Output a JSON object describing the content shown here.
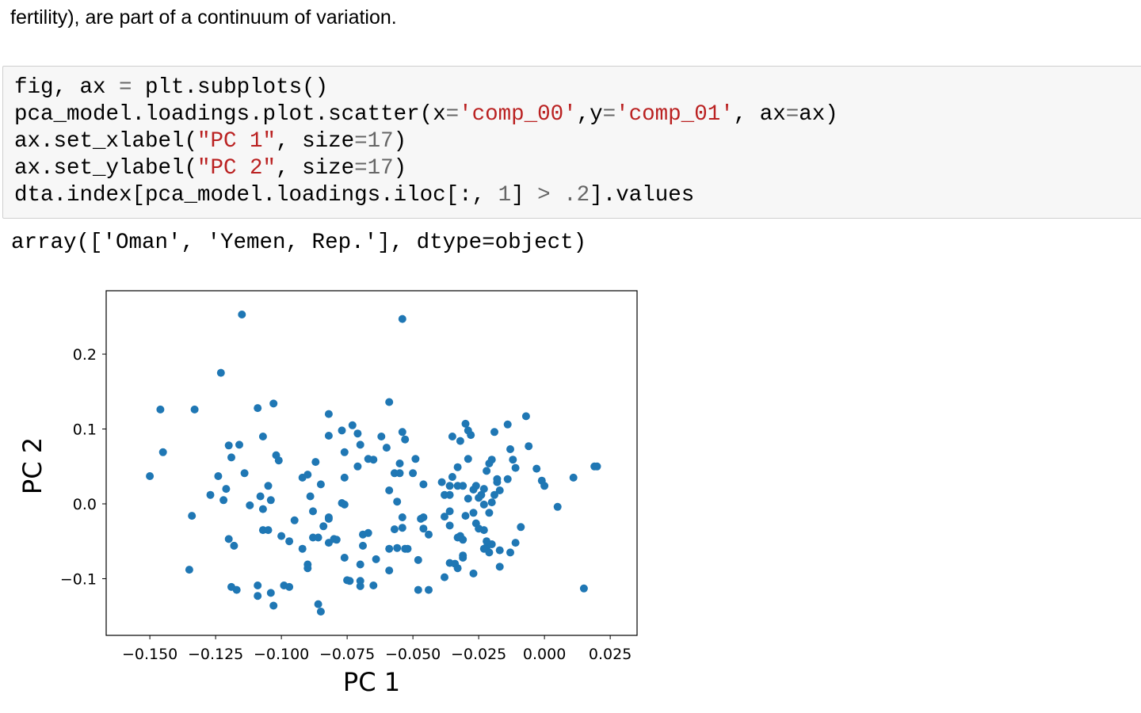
{
  "paragraph": "fertility), are part of a continuum of variation.",
  "code_cell": {
    "lines": [
      [
        {
          "t": "fig, ax ",
          "k": "plain"
        },
        {
          "t": "=",
          "k": "op"
        },
        {
          "t": " plt.subplots()",
          "k": "plain"
        }
      ],
      [
        {
          "t": "pca_model.loadings.plot.scatter(x",
          "k": "plain"
        },
        {
          "t": "=",
          "k": "op"
        },
        {
          "t": "'comp_00'",
          "k": "string"
        },
        {
          "t": ",y",
          "k": "plain"
        },
        {
          "t": "=",
          "k": "op"
        },
        {
          "t": "'comp_01'",
          "k": "string"
        },
        {
          "t": ", ax",
          "k": "plain"
        },
        {
          "t": "=",
          "k": "op"
        },
        {
          "t": "ax)",
          "k": "plain"
        }
      ],
      [
        {
          "t": "ax.set_xlabel(",
          "k": "plain"
        },
        {
          "t": "\"PC 1\"",
          "k": "string"
        },
        {
          "t": ", size",
          "k": "plain"
        },
        {
          "t": "=",
          "k": "op"
        },
        {
          "t": "17",
          "k": "number"
        },
        {
          "t": ")",
          "k": "plain"
        }
      ],
      [
        {
          "t": "ax.set_ylabel(",
          "k": "plain"
        },
        {
          "t": "\"PC 2\"",
          "k": "string"
        },
        {
          "t": ", size",
          "k": "plain"
        },
        {
          "t": "=",
          "k": "op"
        },
        {
          "t": "17",
          "k": "number"
        },
        {
          "t": ")",
          "k": "plain"
        }
      ],
      [
        {
          "t": "dta.index[pca_model.loadings.iloc[:, ",
          "k": "plain"
        },
        {
          "t": "1",
          "k": "number"
        },
        {
          "t": "] ",
          "k": "plain"
        },
        {
          "t": ">",
          "k": "op"
        },
        {
          "t": " ",
          "k": "plain"
        },
        {
          "t": ".2",
          "k": "number"
        },
        {
          "t": "].values",
          "k": "plain"
        }
      ]
    ]
  },
  "output_text": "array(['Oman', 'Yemen, Rep.'], dtype=object)",
  "chart_data": {
    "type": "scatter",
    "xlabel": "PC 1",
    "ylabel": "PC 2",
    "xlim": [
      -0.1666,
      0.0352
    ],
    "ylim": [
      -0.1757,
      0.2847
    ],
    "xticks": [
      -0.15,
      -0.125,
      -0.1,
      -0.075,
      -0.05,
      -0.025,
      0.0,
      0.025
    ],
    "xtick_labels": [
      "−0.150",
      "−0.125",
      "−0.100",
      "−0.075",
      "−0.050",
      "−0.025",
      "0.000",
      "0.025"
    ],
    "yticks": [
      -0.1,
      0.0,
      0.1,
      0.2
    ],
    "ytick_labels": [
      "−0.1",
      "0.0",
      "0.1",
      "0.2"
    ],
    "grid": false,
    "color": "#1f77b4",
    "points": [
      [
        -0.115,
        0.253
      ],
      [
        -0.054,
        0.247
      ],
      [
        -0.123,
        0.175
      ],
      [
        -0.146,
        0.126
      ],
      [
        -0.133,
        0.126
      ],
      [
        -0.109,
        0.128
      ],
      [
        -0.103,
        0.134
      ],
      [
        -0.059,
        0.136
      ],
      [
        -0.082,
        0.12
      ],
      [
        -0.15,
        0.037
      ],
      [
        -0.145,
        0.069
      ],
      [
        -0.12,
        0.078
      ],
      [
        -0.116,
        0.079
      ],
      [
        -0.119,
        0.062
      ],
      [
        -0.107,
        0.09
      ],
      [
        -0.102,
        0.065
      ],
      [
        -0.101,
        0.058
      ],
      [
        -0.114,
        0.041
      ],
      [
        -0.124,
        0.037
      ],
      [
        -0.127,
        0.012
      ],
      [
        -0.121,
        0.02
      ],
      [
        -0.122,
        0.005
      ],
      [
        -0.134,
        -0.016
      ],
      [
        -0.135,
        -0.088
      ],
      [
        -0.12,
        -0.047
      ],
      [
        -0.118,
        -0.056
      ],
      [
        -0.119,
        -0.111
      ],
      [
        -0.117,
        -0.115
      ],
      [
        -0.109,
        -0.109
      ],
      [
        -0.109,
        -0.123
      ],
      [
        -0.104,
        -0.119
      ],
      [
        -0.103,
        -0.136
      ],
      [
        -0.099,
        -0.109
      ],
      [
        -0.097,
        -0.111
      ],
      [
        -0.086,
        -0.134
      ],
      [
        -0.085,
        -0.144
      ],
      [
        -0.112,
        -0.002
      ],
      [
        -0.108,
        0.01
      ],
      [
        -0.107,
        -0.007
      ],
      [
        -0.104,
        0.005
      ],
      [
        -0.105,
        0.024
      ],
      [
        -0.107,
        -0.035
      ],
      [
        -0.105,
        -0.035
      ],
      [
        -0.1,
        -0.043
      ],
      [
        -0.097,
        -0.05
      ],
      [
        -0.095,
        -0.022
      ],
      [
        -0.092,
        -0.06
      ],
      [
        -0.09,
        -0.081
      ],
      [
        -0.09,
        -0.086
      ],
      [
        -0.092,
        0.035
      ],
      [
        -0.09,
        0.039
      ],
      [
        -0.087,
        0.056
      ],
      [
        -0.085,
        0.026
      ],
      [
        -0.089,
        0.01
      ],
      [
        -0.088,
        -0.01
      ],
      [
        -0.088,
        -0.045
      ],
      [
        -0.086,
        -0.045
      ],
      [
        -0.082,
        -0.02
      ],
      [
        -0.082,
        -0.018
      ],
      [
        -0.082,
        -0.052
      ],
      [
        -0.08,
        -0.047
      ],
      [
        -0.084,
        -0.03
      ],
      [
        -0.076,
        0.035
      ],
      [
        -0.076,
        0.069
      ],
      [
        -0.077,
        0.098
      ],
      [
        -0.082,
        0.091
      ],
      [
        -0.073,
        0.105
      ],
      [
        -0.071,
        0.094
      ],
      [
        -0.07,
        0.079
      ],
      [
        -0.067,
        0.06
      ],
      [
        -0.062,
        0.09
      ],
      [
        -0.06,
        0.075
      ],
      [
        -0.065,
        0.059
      ],
      [
        -0.071,
        0.05
      ],
      [
        -0.077,
        0.001
      ],
      [
        -0.076,
        -0.001
      ],
      [
        -0.079,
        -0.048
      ],
      [
        -0.076,
        -0.072
      ],
      [
        -0.075,
        -0.102
      ],
      [
        -0.074,
        -0.103
      ],
      [
        -0.07,
        -0.11
      ],
      [
        -0.07,
        -0.081
      ],
      [
        -0.07,
        -0.103
      ],
      [
        -0.065,
        -0.109
      ],
      [
        -0.069,
        -0.056
      ],
      [
        -0.069,
        -0.041
      ],
      [
        -0.067,
        -0.039
      ],
      [
        -0.064,
        -0.074
      ],
      [
        -0.059,
        -0.089
      ],
      [
        -0.059,
        0.018
      ],
      [
        -0.056,
        0.003
      ],
      [
        -0.059,
        -0.06
      ],
      [
        -0.056,
        -0.059
      ],
      [
        -0.054,
        -0.032
      ],
      [
        -0.057,
        -0.034
      ],
      [
        -0.054,
        -0.018
      ],
      [
        -0.054,
        0.096
      ],
      [
        -0.053,
        0.086
      ],
      [
        -0.055,
        0.054
      ],
      [
        -0.057,
        0.041
      ],
      [
        -0.055,
        0.041
      ],
      [
        -0.05,
        0.041
      ],
      [
        -0.049,
        0.06
      ],
      [
        -0.052,
        -0.06
      ],
      [
        -0.053,
        -0.06
      ],
      [
        -0.048,
        -0.075
      ],
      [
        -0.048,
        -0.115
      ],
      [
        -0.044,
        -0.115
      ],
      [
        -0.046,
        0.026
      ],
      [
        -0.046,
        -0.018
      ],
      [
        -0.046,
        -0.033
      ],
      [
        -0.044,
        -0.041
      ],
      [
        -0.039,
        0.029
      ],
      [
        -0.038,
        0.012
      ],
      [
        -0.036,
        0.012
      ],
      [
        -0.036,
        0.024
      ],
      [
        -0.035,
        0.036
      ],
      [
        -0.036,
        -0.01
      ],
      [
        -0.038,
        -0.098
      ],
      [
        -0.036,
        -0.079
      ],
      [
        -0.033,
        -0.086
      ],
      [
        -0.031,
        -0.072
      ],
      [
        -0.033,
        -0.045
      ],
      [
        -0.032,
        -0.043
      ],
      [
        -0.031,
        -0.048
      ],
      [
        -0.035,
        0.09
      ],
      [
        -0.032,
        0.084
      ],
      [
        -0.03,
        0.107
      ],
      [
        -0.029,
        0.098
      ],
      [
        -0.028,
        0.092
      ],
      [
        -0.029,
        0.06
      ],
      [
        -0.033,
        0.049
      ],
      [
        -0.033,
        0.024
      ],
      [
        -0.031,
        0.024
      ],
      [
        -0.029,
        0.007
      ],
      [
        -0.027,
        0.019
      ],
      [
        -0.026,
        0.024
      ],
      [
        -0.025,
        0.008
      ],
      [
        -0.024,
        0.012
      ],
      [
        -0.023,
        -0.001
      ],
      [
        -0.023,
        0.02
      ],
      [
        -0.022,
        0.044
      ],
      [
        -0.021,
        0.054
      ],
      [
        -0.02,
        0.059
      ],
      [
        -0.019,
        0.096
      ],
      [
        -0.018,
        0.029
      ],
      [
        -0.018,
        0.033
      ],
      [
        -0.019,
        0.012
      ],
      [
        -0.017,
        0.018
      ],
      [
        -0.014,
        0.106
      ],
      [
        -0.013,
        0.073
      ],
      [
        -0.012,
        0.059
      ],
      [
        -0.011,
        0.048
      ],
      [
        -0.014,
        0.033
      ],
      [
        -0.007,
        0.117
      ],
      [
        -0.006,
        0.077
      ],
      [
        -0.003,
        0.047
      ],
      [
        -0.001,
        0.031
      ],
      [
        0.0,
        0.024
      ],
      [
        0.011,
        0.035
      ],
      [
        0.019,
        0.05
      ],
      [
        0.02,
        0.05
      ],
      [
        0.005,
        -0.004
      ],
      [
        0.015,
        -0.113
      ],
      [
        -0.026,
        -0.026
      ],
      [
        -0.025,
        -0.033
      ],
      [
        -0.023,
        -0.035
      ],
      [
        -0.022,
        -0.058
      ],
      [
        -0.023,
        -0.06
      ],
      [
        -0.021,
        -0.065
      ],
      [
        -0.017,
        -0.062
      ],
      [
        -0.02,
        -0.054
      ],
      [
        -0.022,
        -0.05
      ],
      [
        -0.031,
        -0.069
      ],
      [
        -0.034,
        -0.08
      ],
      [
        -0.027,
        -0.093
      ],
      [
        -0.017,
        -0.084
      ],
      [
        -0.013,
        -0.065
      ],
      [
        -0.011,
        -0.052
      ],
      [
        -0.009,
        -0.031
      ],
      [
        -0.047,
        -0.02
      ],
      [
        -0.038,
        -0.017
      ],
      [
        -0.036,
        -0.029
      ],
      [
        -0.03,
        -0.016
      ],
      [
        -0.027,
        -0.012
      ],
      [
        -0.021,
        -0.012
      ],
      [
        -0.02,
        0.002
      ]
    ]
  }
}
